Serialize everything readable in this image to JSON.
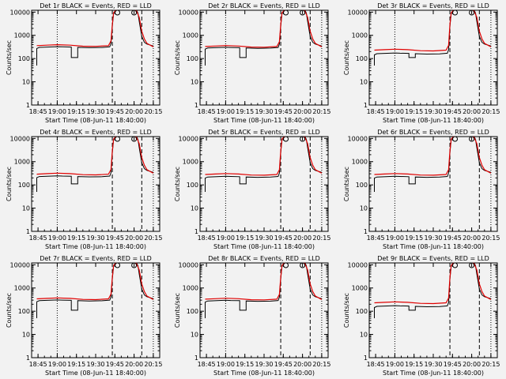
{
  "figure": {
    "background": "#f2f2f2",
    "series_colors": {
      "events": "#000000",
      "lld": "#e00000"
    }
  },
  "chart_data": [
    {
      "type": "line",
      "title": "Det 1r BLACK = Events, RED = LLD",
      "xlabel": "Start Time (08-Jun-11 18:40:00)",
      "ylabel": "Counts/sec",
      "yscale": "log",
      "ylim": [
        1,
        12000
      ],
      "xticks": [
        "18:45",
        "19:00",
        "19:15",
        "19:30",
        "19:45",
        "20:00",
        "20:15"
      ],
      "yticks": [
        "1",
        "10",
        "100",
        "1000",
        "10000"
      ],
      "series": [
        {
          "name": "Events",
          "base": 320,
          "dip": 110
        },
        {
          "name": "LLD",
          "base": 360
        }
      ]
    },
    {
      "type": "line",
      "title": "Det 2r BLACK = Events, RED = LLD",
      "xlabel": "Start Time (08-Jun-11 18:40:00)",
      "ylabel": "Counts/sec",
      "yscale": "log",
      "ylim": [
        1,
        12000
      ],
      "xticks": [
        "18:45",
        "19:00",
        "19:15",
        "19:30",
        "19:45",
        "20:00",
        "20:15"
      ],
      "yticks": [
        "1",
        "10",
        "100",
        "1000",
        "10000"
      ],
      "series": [
        {
          "name": "Events",
          "base": 300,
          "dip": 110
        },
        {
          "name": "LLD",
          "base": 330
        }
      ]
    },
    {
      "type": "line",
      "title": "Det 3r BLACK = Events, RED = LLD",
      "xlabel": "Start Time (08-Jun-11 18:40:00)",
      "ylabel": "Counts/sec",
      "yscale": "log",
      "ylim": [
        1,
        12000
      ],
      "xticks": [
        "18:45",
        "19:00",
        "19:15",
        "19:30",
        "19:45",
        "20:00",
        "20:15"
      ],
      "yticks": [
        "1",
        "10",
        "100",
        "1000",
        "10000"
      ],
      "series": [
        {
          "name": "Events",
          "base": 170,
          "dip": 110
        },
        {
          "name": "LLD",
          "base": 230
        }
      ]
    },
    {
      "type": "line",
      "title": "Det 4r BLACK = Events, RED = LLD",
      "xlabel": "Start Time (08-Jun-11 18:40:00)",
      "ylabel": "Counts/sec",
      "yscale": "log",
      "ylim": [
        1,
        12000
      ],
      "xticks": [
        "18:45",
        "19:00",
        "19:15",
        "19:30",
        "19:45",
        "20:00",
        "20:15"
      ],
      "yticks": [
        "1",
        "10",
        "100",
        "1000",
        "10000"
      ],
      "series": [
        {
          "name": "Events",
          "base": 240,
          "dip": 110
        },
        {
          "name": "LLD",
          "base": 290
        }
      ]
    },
    {
      "type": "line",
      "title": "Det 5r BLACK = Events, RED = LLD",
      "xlabel": "Start Time (08-Jun-11 18:40:00)",
      "ylabel": "Counts/sec",
      "yscale": "log",
      "ylim": [
        1,
        12000
      ],
      "xticks": [
        "18:45",
        "19:00",
        "19:15",
        "19:30",
        "19:45",
        "20:00",
        "20:15"
      ],
      "yticks": [
        "1",
        "10",
        "100",
        "1000",
        "10000"
      ],
      "series": [
        {
          "name": "Events",
          "base": 230,
          "dip": 110
        },
        {
          "name": "LLD",
          "base": 280
        }
      ]
    },
    {
      "type": "line",
      "title": "Det 6r BLACK = Events, RED = LLD",
      "xlabel": "Start Time (08-Jun-11 18:40:00)",
      "ylabel": "Counts/sec",
      "yscale": "log",
      "ylim": [
        1,
        12000
      ],
      "xticks": [
        "18:45",
        "19:00",
        "19:15",
        "19:30",
        "19:45",
        "20:00",
        "20:15"
      ],
      "yticks": [
        "1",
        "10",
        "100",
        "1000",
        "10000"
      ],
      "series": [
        {
          "name": "Events",
          "base": 230,
          "dip": 110
        },
        {
          "name": "LLD",
          "base": 280
        }
      ]
    },
    {
      "type": "line",
      "title": "Det 7r BLACK = Events, RED = LLD",
      "xlabel": "Start Time (08-Jun-11 18:40:00)",
      "ylabel": "Counts/sec",
      "yscale": "log",
      "ylim": [
        1,
        12000
      ],
      "xticks": [
        "18:45",
        "19:00",
        "19:15",
        "19:30",
        "19:45",
        "20:00",
        "20:15"
      ],
      "yticks": [
        "1",
        "10",
        "100",
        "1000",
        "10000"
      ],
      "series": [
        {
          "name": "Events",
          "base": 300,
          "dip": 110
        },
        {
          "name": "LLD",
          "base": 340
        }
      ]
    },
    {
      "type": "line",
      "title": "Det 8r BLACK = Events, RED = LLD",
      "xlabel": "Start Time (08-Jun-11 18:40:00)",
      "ylabel": "Counts/sec",
      "yscale": "log",
      "ylim": [
        1,
        12000
      ],
      "xticks": [
        "18:45",
        "19:00",
        "19:15",
        "19:30",
        "19:45",
        "20:00",
        "20:15"
      ],
      "yticks": [
        "1",
        "10",
        "100",
        "1000",
        "10000"
      ],
      "series": [
        {
          "name": "Events",
          "base": 290,
          "dip": 110
        },
        {
          "name": "LLD",
          "base": 330
        }
      ]
    },
    {
      "type": "line",
      "title": "Det 9r BLACK = Events, RED = LLD",
      "xlabel": "Start Time (08-Jun-11 18:40:00)",
      "ylabel": "Counts/sec",
      "yscale": "log",
      "ylim": [
        1,
        12000
      ],
      "xticks": [
        "18:45",
        "19:00",
        "19:15",
        "19:30",
        "19:45",
        "20:00",
        "20:15"
      ],
      "yticks": [
        "1",
        "10",
        "100",
        "1000",
        "10000"
      ],
      "series": [
        {
          "name": "Events",
          "base": 170,
          "dip": 110
        },
        {
          "name": "LLD",
          "base": 230
        }
      ]
    }
  ]
}
